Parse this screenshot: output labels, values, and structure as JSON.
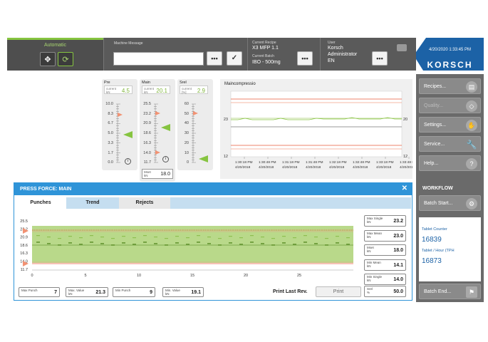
{
  "header": {
    "mode_label": "Automatic",
    "machine_message_label": "Machine Message",
    "machine_message_value": "",
    "current_recipe_label": "Current Recipe",
    "current_recipe_value": "X3 MFP 1.1",
    "current_batch_label": "Current Batch",
    "current_batch_value": "IBO - 500mg",
    "user_label": "User",
    "user_name": "Korsch",
    "user_role": "Administrator",
    "user_lang": "EN",
    "datetime": "4/20/2020 1:33:45 PM",
    "logo": "KORSCH"
  },
  "sidebar": {
    "items": [
      {
        "label": "Recipes...",
        "icon": "recipe-icon"
      },
      {
        "label": "Quality...",
        "icon": "diamond-icon"
      },
      {
        "label": "Settings...",
        "icon": "settings-icon"
      },
      {
        "label": "Service...",
        "icon": "wrench-icon"
      },
      {
        "label": "Help...",
        "icon": "help-icon"
      }
    ],
    "workflow_title": "WORKFLOW",
    "batch_start": "Batch Start...",
    "tablet_counter_label": "Tablet Counter",
    "tablet_counter_value": "16839",
    "tablet_hour_label": "Tablet / Hour (TPH",
    "tablet_hour_value": "16873",
    "batch_end": "Batch End..."
  },
  "gauges": {
    "pre": {
      "title": "Pre",
      "cur_label": "current",
      "unit": "kN",
      "value": "4.5",
      "ticks": [
        "10.0",
        "8.3",
        "6.7",
        "5.0",
        "3.3",
        "1.7",
        "0.0"
      ]
    },
    "main": {
      "title": "Main",
      "cur_label": "current",
      "unit": "kN",
      "value": "20.1",
      "ticks": [
        "25.5",
        "23.2",
        "20.9",
        "18.6",
        "16.3",
        "14.0",
        "11.7"
      ],
      "mset_label": "Mset",
      "mset_unit": "kN",
      "mset_value": "18.0"
    },
    "srel": {
      "title": "Srel",
      "cur_label": "current",
      "unit": "[%]",
      "value": "2.9",
      "ticks": [
        "60",
        "50",
        "40",
        "30",
        "20",
        "10",
        "0"
      ]
    }
  },
  "maincompression": {
    "title": "Maincompressio",
    "y_left": [
      "23",
      "12"
    ],
    "y_right": [
      "20",
      "12"
    ],
    "x_times": [
      "1:30:18 PM",
      "1:30:48 PM",
      "1:31:18 PM",
      "1:31:48 PM",
      "1:32:18 PM",
      "1:32:48 PM",
      "1:33:18 PM",
      "1:33:48 PM"
    ],
    "x_dates": [
      "4/20/2018",
      "4/20/2018",
      "4/20/2018",
      "4/20/2018",
      "4/20/2018",
      "4/20/2018",
      "4/20/2018",
      "4/20/2018"
    ]
  },
  "force_panel": {
    "title": "PRESS FORCE: MAIN",
    "tabs": [
      "Punches",
      "Trend",
      "Rejects"
    ],
    "y_ticks": [
      "25.5",
      "23.2",
      "20.9",
      "18.6",
      "16.3",
      "14.0",
      "11.7"
    ],
    "x_ticks": [
      "0",
      "5",
      "10",
      "15",
      "20",
      "25"
    ],
    "right_boxes": [
      {
        "label": "Max Single",
        "unit": "kN",
        "value": "23.2"
      },
      {
        "label": "Max Mean",
        "unit": "kN",
        "value": "23.0"
      },
      {
        "label": "Mset",
        "unit": "kN",
        "value": "18.0"
      },
      {
        "label": "Min Mean",
        "unit": "kN",
        "value": "14.1"
      },
      {
        "label": "Min Single",
        "unit": "kN",
        "value": "14.0"
      }
    ],
    "srel": {
      "label": "Srel",
      "unit": "%",
      "value": "50.0"
    },
    "bottom_boxes": [
      {
        "label": "Max Punch",
        "unit": "",
        "value": "7"
      },
      {
        "label": "Max. Value",
        "unit": "kN",
        "value": "21.3"
      },
      {
        "label": "Min Punch",
        "unit": "",
        "value": "9"
      },
      {
        "label": "Min. Value",
        "unit": "kN",
        "value": "19.1"
      }
    ],
    "print_last": "Print Last Rev.",
    "print_button": "Print"
  },
  "colors": {
    "accent": "#2f94d8",
    "brand": "#1c62a6",
    "green": "#86c440",
    "limit": "#e85a3a"
  }
}
